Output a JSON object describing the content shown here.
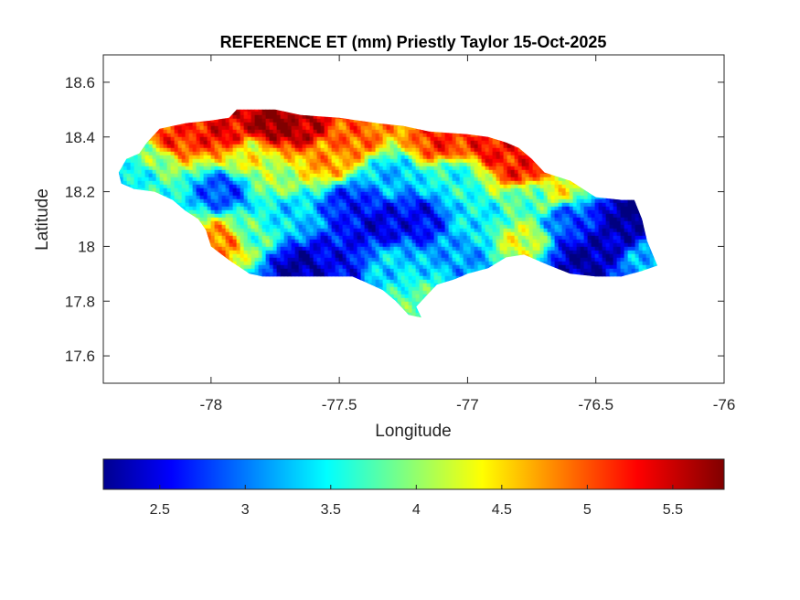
{
  "chart_data": {
    "type": "heatmap",
    "title": "REFERENCE ET (mm) Priestly Taylor 15-Oct-2025",
    "xlabel": "Longitude",
    "ylabel": "Latitude",
    "xlim": [
      -78.42,
      -76.0
    ],
    "ylim": [
      17.5,
      18.7
    ],
    "xticks": [
      -78,
      -77.5,
      -77,
      -76.5,
      -76
    ],
    "yticks": [
      17.6,
      17.8,
      18,
      18.2,
      18.4,
      18.6
    ],
    "grid": false,
    "colormap": "jet",
    "colorbar": {
      "location": "south",
      "range": [
        2.17,
        5.8
      ],
      "ticks": [
        2.5,
        3,
        3.5,
        4,
        4.5,
        5,
        5.5
      ]
    },
    "region_outline": [
      [
        -78.36,
        18.27
      ],
      [
        -78.33,
        18.32
      ],
      [
        -78.28,
        18.34
      ],
      [
        -78.25,
        18.38
      ],
      [
        -78.2,
        18.43
      ],
      [
        -78.1,
        18.45
      ],
      [
        -78.0,
        18.46
      ],
      [
        -77.93,
        18.47
      ],
      [
        -77.9,
        18.5
      ],
      [
        -77.75,
        18.5
      ],
      [
        -77.65,
        18.48
      ],
      [
        -77.5,
        18.47
      ],
      [
        -77.35,
        18.45
      ],
      [
        -77.25,
        18.44
      ],
      [
        -77.15,
        18.42
      ],
      [
        -77.0,
        18.41
      ],
      [
        -76.92,
        18.4
      ],
      [
        -76.85,
        18.38
      ],
      [
        -76.8,
        18.36
      ],
      [
        -76.75,
        18.32
      ],
      [
        -76.7,
        18.27
      ],
      [
        -76.6,
        18.24
      ],
      [
        -76.5,
        18.18
      ],
      [
        -76.4,
        18.17
      ],
      [
        -76.35,
        18.17
      ],
      [
        -76.32,
        18.1
      ],
      [
        -76.3,
        18.02
      ],
      [
        -76.26,
        17.93
      ],
      [
        -76.32,
        17.91
      ],
      [
        -76.4,
        17.89
      ],
      [
        -76.5,
        17.89
      ],
      [
        -76.6,
        17.9
      ],
      [
        -76.68,
        17.93
      ],
      [
        -76.78,
        17.97
      ],
      [
        -76.85,
        17.96
      ],
      [
        -76.92,
        17.92
      ],
      [
        -77.0,
        17.9
      ],
      [
        -77.05,
        17.88
      ],
      [
        -77.12,
        17.86
      ],
      [
        -77.16,
        17.82
      ],
      [
        -77.2,
        17.78
      ],
      [
        -77.18,
        17.74
      ],
      [
        -77.23,
        17.75
      ],
      [
        -77.28,
        17.8
      ],
      [
        -77.33,
        17.84
      ],
      [
        -77.4,
        17.87
      ],
      [
        -77.45,
        17.89
      ],
      [
        -77.55,
        17.89
      ],
      [
        -77.68,
        17.89
      ],
      [
        -77.8,
        17.89
      ],
      [
        -77.85,
        17.9
      ],
      [
        -77.93,
        17.95
      ],
      [
        -78.0,
        18.0
      ],
      [
        -78.02,
        18.06
      ],
      [
        -78.05,
        18.1
      ],
      [
        -78.1,
        18.13
      ],
      [
        -78.15,
        18.17
      ],
      [
        -78.22,
        18.2
      ],
      [
        -78.3,
        18.21
      ],
      [
        -78.35,
        18.23
      ]
    ],
    "value_field": [
      {
        "lon": -77.75,
        "lat": 18.45,
        "value": 5.8
      },
      {
        "lon": -77.65,
        "lat": 18.44,
        "value": 5.6
      },
      {
        "lon": -77.95,
        "lat": 18.42,
        "value": 5.4
      },
      {
        "lon": -78.15,
        "lat": 18.4,
        "value": 5.2
      },
      {
        "lon": -77.45,
        "lat": 18.4,
        "value": 5.0
      },
      {
        "lon": -77.1,
        "lat": 18.38,
        "value": 5.2
      },
      {
        "lon": -76.9,
        "lat": 18.36,
        "value": 5.3
      },
      {
        "lon": -76.78,
        "lat": 18.28,
        "value": 5.3
      },
      {
        "lon": -78.25,
        "lat": 18.32,
        "value": 4.0
      },
      {
        "lon": -78.3,
        "lat": 18.27,
        "value": 3.5
      },
      {
        "lon": -77.55,
        "lat": 18.32,
        "value": 4.8
      },
      {
        "lon": -77.85,
        "lat": 18.33,
        "value": 4.4
      },
      {
        "lon": -77.95,
        "lat": 18.2,
        "value": 2.9
      },
      {
        "lon": -77.7,
        "lat": 18.12,
        "value": 3.4
      },
      {
        "lon": -77.75,
        "lat": 18.25,
        "value": 4.1
      },
      {
        "lon": -77.45,
        "lat": 18.15,
        "value": 2.7
      },
      {
        "lon": -77.35,
        "lat": 18.08,
        "value": 2.5
      },
      {
        "lon": -77.2,
        "lat": 18.1,
        "value": 2.6
      },
      {
        "lon": -77.3,
        "lat": 18.25,
        "value": 3.3
      },
      {
        "lon": -77.05,
        "lat": 18.25,
        "value": 3.6
      },
      {
        "lon": -77.85,
        "lat": 18.05,
        "value": 3.8
      },
      {
        "lon": -77.95,
        "lat": 18.02,
        "value": 4.9
      },
      {
        "lon": -77.65,
        "lat": 17.92,
        "value": 2.3
      },
      {
        "lon": -77.5,
        "lat": 17.95,
        "value": 2.6
      },
      {
        "lon": -77.3,
        "lat": 17.93,
        "value": 3.4
      },
      {
        "lon": -77.2,
        "lat": 17.8,
        "value": 3.8
      },
      {
        "lon": -77.0,
        "lat": 17.96,
        "value": 3.2
      },
      {
        "lon": -76.95,
        "lat": 18.1,
        "value": 3.5
      },
      {
        "lon": -76.8,
        "lat": 18.02,
        "value": 4.3
      },
      {
        "lon": -76.75,
        "lat": 18.18,
        "value": 3.8
      },
      {
        "lon": -76.6,
        "lat": 18.1,
        "value": 2.9
      },
      {
        "lon": -76.55,
        "lat": 17.95,
        "value": 2.3
      },
      {
        "lon": -76.45,
        "lat": 18.02,
        "value": 2.4
      },
      {
        "lon": -76.37,
        "lat": 18.1,
        "value": 2.2
      },
      {
        "lon": -76.3,
        "lat": 17.95,
        "value": 3.3
      },
      {
        "lon": -76.65,
        "lat": 18.21,
        "value": 4.4
      }
    ]
  }
}
